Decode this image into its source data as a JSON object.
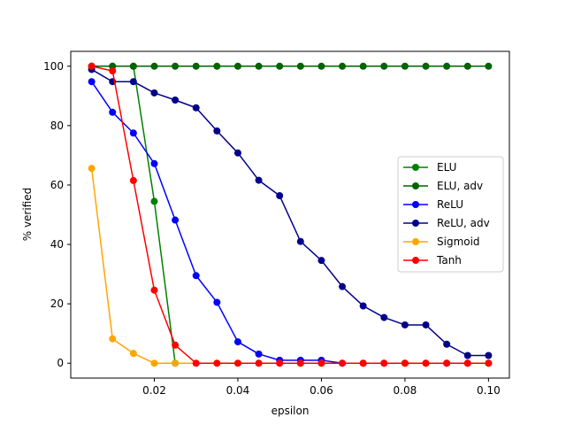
{
  "chart_data": {
    "type": "line",
    "xlabel": "epsilon",
    "ylabel": "% verified",
    "xlim": [
      -0.0,
      0.105
    ],
    "ylim": [
      -5,
      105
    ],
    "xticks": [
      0.02,
      0.04,
      0.06,
      0.08,
      0.1
    ],
    "xtick_labels": [
      "0.02",
      "0.04",
      "0.06",
      "0.08",
      "0.10"
    ],
    "yticks": [
      0,
      20,
      40,
      60,
      80,
      100
    ],
    "ytick_labels": [
      "0",
      "20",
      "40",
      "60",
      "80",
      "100"
    ],
    "grid": false,
    "legend_position": "center-right",
    "series": [
      {
        "name": "ELU",
        "color": "#008000",
        "x": [
          0.005,
          0.01,
          0.015,
          0.02,
          0.025
        ],
        "y": [
          100,
          100,
          100,
          54.5,
          0
        ]
      },
      {
        "name": "ELU, adv",
        "color": "#006400",
        "x": [
          0.005,
          0.01,
          0.015,
          0.02,
          0.025,
          0.03,
          0.035,
          0.04,
          0.045,
          0.05,
          0.055,
          0.06,
          0.065,
          0.07,
          0.075,
          0.08,
          0.085,
          0.09,
          0.095,
          0.1
        ],
        "y": [
          100,
          100,
          100,
          100,
          100,
          100,
          100,
          100,
          100,
          100,
          100,
          100,
          100,
          100,
          100,
          100,
          100,
          100,
          100,
          100
        ]
      },
      {
        "name": "ReLU",
        "color": "#0000ff",
        "x": [
          0.005,
          0.01,
          0.015,
          0.02,
          0.025,
          0.03,
          0.035,
          0.04,
          0.045,
          0.05,
          0.055,
          0.06,
          0.065,
          0.07,
          0.075,
          0.08,
          0.085,
          0.09,
          0.095,
          0.1
        ],
        "y": [
          94.8,
          84.5,
          77.5,
          67.2,
          48.2,
          29.5,
          20.5,
          7.2,
          3.1,
          1.0,
          1.0,
          1.0,
          0,
          0,
          0,
          0,
          0,
          0,
          0,
          0
        ]
      },
      {
        "name": "ReLU, adv",
        "color": "#00008b",
        "x": [
          0.005,
          0.01,
          0.015,
          0.02,
          0.025,
          0.03,
          0.035,
          0.04,
          0.045,
          0.05,
          0.055,
          0.06,
          0.065,
          0.07,
          0.075,
          0.08,
          0.085,
          0.09,
          0.095,
          0.1
        ],
        "y": [
          98.9,
          94.8,
          94.8,
          91.0,
          88.6,
          86.0,
          78.2,
          70.8,
          61.6,
          56.4,
          41.0,
          34.6,
          25.8,
          19.3,
          15.4,
          12.9,
          12.9,
          6.4,
          2.6,
          2.6
        ]
      },
      {
        "name": "Sigmoid",
        "color": "#ffa500",
        "x": [
          0.005,
          0.01,
          0.015,
          0.02,
          0.025,
          0.03,
          0.035,
          0.04,
          0.045,
          0.05,
          0.055,
          0.06,
          0.065,
          0.07,
          0.075,
          0.08,
          0.085,
          0.09,
          0.095,
          0.1
        ],
        "y": [
          65.6,
          8.2,
          3.3,
          0,
          0,
          0,
          0,
          0,
          0,
          0,
          0,
          0,
          0,
          0,
          0,
          0,
          0,
          0,
          0,
          0
        ]
      },
      {
        "name": "Tanh",
        "color": "#ff0000",
        "x": [
          0.005,
          0.01,
          0.015,
          0.02,
          0.025,
          0.03,
          0.035,
          0.04,
          0.045,
          0.05,
          0.055,
          0.06,
          0.065,
          0.07,
          0.075,
          0.08,
          0.085,
          0.09,
          0.095,
          0.1
        ],
        "y": [
          100,
          98.4,
          61.5,
          24.6,
          6.1,
          0,
          0,
          0,
          0,
          0,
          0,
          0,
          0,
          0,
          0,
          0,
          0,
          0,
          0,
          0
        ]
      }
    ]
  }
}
